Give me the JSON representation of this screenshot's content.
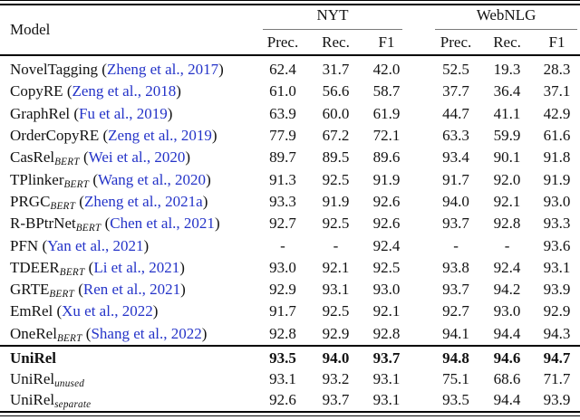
{
  "colors": {
    "citation_blue": "#2433c8",
    "cmidrule_gray": "#7a7a7a",
    "text_ink": "#121212"
  },
  "table": {
    "model_header": "Model",
    "groups": [
      {
        "label": "NYT"
      },
      {
        "label": "WebNLG"
      }
    ],
    "sub_headers": [
      "Prec.",
      "Rec.",
      "F1",
      "Prec.",
      "Rec.",
      "F1"
    ],
    "rows": [
      {
        "name": "NovelTagging",
        "sub": "",
        "cite": "Zheng et al., 2017",
        "bold": false,
        "nyt": [
          "62.4",
          "31.7",
          "42.0"
        ],
        "webnlg": [
          "52.5",
          "19.3",
          "28.3"
        ]
      },
      {
        "name": "CopyRE",
        "sub": "",
        "cite": "Zeng et al., 2018",
        "bold": false,
        "nyt": [
          "61.0",
          "56.6",
          "58.7"
        ],
        "webnlg": [
          "37.7",
          "36.4",
          "37.1"
        ]
      },
      {
        "name": "GraphRel",
        "sub": "",
        "cite": "Fu et al., 2019",
        "bold": false,
        "nyt": [
          "63.9",
          "60.0",
          "61.9"
        ],
        "webnlg": [
          "44.7",
          "41.1",
          "42.9"
        ]
      },
      {
        "name": "OrderCopyRE",
        "sub": "",
        "cite": "Zeng et al., 2019",
        "bold": false,
        "nyt": [
          "77.9",
          "67.2",
          "72.1"
        ],
        "webnlg": [
          "63.3",
          "59.9",
          "61.6"
        ]
      },
      {
        "name": "CasRel",
        "sub": "BERT",
        "cite": "Wei et al., 2020",
        "bold": false,
        "nyt": [
          "89.7",
          "89.5",
          "89.6"
        ],
        "webnlg": [
          "93.4",
          "90.1",
          "91.8"
        ]
      },
      {
        "name": "TPlinker",
        "sub": "BERT",
        "cite": "Wang et al., 2020",
        "bold": false,
        "nyt": [
          "91.3",
          "92.5",
          "91.9"
        ],
        "webnlg": [
          "91.7",
          "92.0",
          "91.9"
        ]
      },
      {
        "name": "PRGC",
        "sub": "BERT",
        "cite": "Zheng et al., 2021a",
        "bold": false,
        "nyt": [
          "93.3",
          "91.9",
          "92.6"
        ],
        "webnlg": [
          "94.0",
          "92.1",
          "93.0"
        ]
      },
      {
        "name": "R-BPtrNet",
        "sub": "BERT",
        "cite": "Chen et al., 2021",
        "bold": false,
        "nyt": [
          "92.7",
          "92.5",
          "92.6"
        ],
        "webnlg": [
          "93.7",
          "92.8",
          "93.3"
        ]
      },
      {
        "name": "PFN",
        "sub": "",
        "cite": "Yan et al., 2021",
        "bold": false,
        "nyt": [
          "-",
          "-",
          "92.4"
        ],
        "webnlg": [
          "-",
          "-",
          "93.6"
        ]
      },
      {
        "name": "TDEER",
        "sub": "BERT",
        "cite": "Li et al., 2021",
        "bold": false,
        "nyt": [
          "93.0",
          "92.1",
          "92.5"
        ],
        "webnlg": [
          "93.8",
          "92.4",
          "93.1"
        ]
      },
      {
        "name": "GRTE",
        "sub": "BERT",
        "cite": "Ren et al., 2021",
        "bold": false,
        "nyt": [
          "92.9",
          "93.1",
          "93.0"
        ],
        "webnlg": [
          "93.7",
          "94.2",
          "93.9"
        ]
      },
      {
        "name": "EmRel",
        "sub": "",
        "cite": "Xu et al., 2022",
        "bold": false,
        "nyt": [
          "91.7",
          "92.5",
          "92.1"
        ],
        "webnlg": [
          "92.7",
          "93.0",
          "92.9"
        ]
      },
      {
        "name": "OneRel",
        "sub": "BERT",
        "cite": "Shang et al., 2022",
        "bold": false,
        "nyt": [
          "92.8",
          "92.9",
          "92.8"
        ],
        "webnlg": [
          "94.1",
          "94.4",
          "94.3"
        ]
      }
    ],
    "footer_rows": [
      {
        "name": "UniRel",
        "sub": "",
        "cite": "",
        "bold": true,
        "nyt": [
          "93.5",
          "94.0",
          "93.7"
        ],
        "webnlg": [
          "94.8",
          "94.6",
          "94.7"
        ]
      },
      {
        "name": "UniRel",
        "sub": "unused",
        "cite": "",
        "bold": false,
        "nyt": [
          "93.1",
          "93.2",
          "93.1"
        ],
        "webnlg": [
          "75.1",
          "68.6",
          "71.7"
        ]
      },
      {
        "name": "UniRel",
        "sub": "separate",
        "cite": "",
        "bold": false,
        "nyt": [
          "92.6",
          "93.7",
          "93.1"
        ],
        "webnlg": [
          "93.5",
          "94.4",
          "93.9"
        ]
      }
    ]
  }
}
